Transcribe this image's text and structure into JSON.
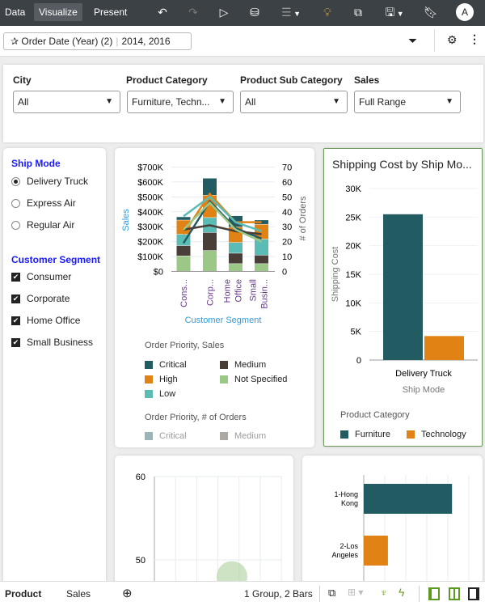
{
  "topbar": {
    "tabs": [
      {
        "label": "Data"
      },
      {
        "label": "Visualize",
        "active": true
      },
      {
        "label": "Present"
      }
    ],
    "icons": [
      "undo-icon",
      "redo-icon",
      "play-icon",
      "data-refresh-icon",
      "comment-icon",
      "lightbulb-icon",
      "export-icon",
      "save-icon",
      "bookmark-icon"
    ],
    "avatar": "A"
  },
  "filterbar": {
    "pin_label": "Order Date (Year) (2)",
    "pin_value": "2014, 2016"
  },
  "filters": [
    {
      "label": "City",
      "value": "All"
    },
    {
      "label": "Product Category",
      "value": "Furniture, Techn..."
    },
    {
      "label": "Product Sub Category",
      "value": "All"
    },
    {
      "label": "Sales",
      "value": "Full Range"
    }
  ],
  "left": {
    "ship_mode_title": "Ship Mode",
    "ship_modes": [
      {
        "label": "Delivery Truck",
        "selected": true
      },
      {
        "label": "Express Air",
        "selected": false
      },
      {
        "label": "Regular Air",
        "selected": false
      }
    ],
    "segment_title": "Customer Segment",
    "segments": [
      {
        "label": "Consumer",
        "checked": true
      },
      {
        "label": "Corporate",
        "checked": true
      },
      {
        "label": "Home Office",
        "checked": true
      },
      {
        "label": "Small Business",
        "checked": true
      }
    ]
  },
  "chart_data": [
    {
      "type": "bar+line",
      "stacked": true,
      "categories": [
        "Cons...",
        "Corp...",
        "Home Office",
        "Small Busin..."
      ],
      "xlabel": "Customer Segment",
      "ylabel": "Sales",
      "y2label": "# of Orders",
      "yticks": [
        "$0",
        "$100K",
        "$200K",
        "$300K",
        "$400K",
        "$500K",
        "$600K",
        "$700K"
      ],
      "ylim": [
        0,
        700000
      ],
      "y2ticks": [
        "0",
        "10",
        "20",
        "30",
        "40",
        "50",
        "60",
        "70"
      ],
      "y2lim": [
        0,
        70
      ],
      "bar_legend_title": "Order Priority, Sales",
      "line_legend_title": "Order Priority, # of Orders",
      "series": [
        {
          "name": "Not Specified",
          "color": "#9cc887",
          "values": [
            103000,
            139000,
            51000,
            51000
          ]
        },
        {
          "name": "Medium",
          "color": "#4a3f38",
          "values": [
            69000,
            121000,
            70000,
            57000
          ]
        },
        {
          "name": "Low",
          "color": "#5bbcb6",
          "values": [
            76000,
            100000,
            72000,
            107000
          ]
        },
        {
          "name": "High",
          "color": "#e08214",
          "values": [
            95000,
            150000,
            104000,
            100000
          ]
        },
        {
          "name": "Critical",
          "color": "#235b63",
          "values": [
            22000,
            114000,
            75000,
            29000
          ]
        }
      ],
      "lines": [
        {
          "name": "Critical",
          "color": "#235b63",
          "values": [
            19,
            47,
            29,
            22
          ]
        },
        {
          "name": "High",
          "color": "#e08214",
          "values": [
            25,
            52,
            33,
            33
          ]
        },
        {
          "name": "Low",
          "color": "#5bbcb6",
          "values": [
            37,
            50,
            33,
            27
          ]
        },
        {
          "name": "Medium",
          "color": "#4a3f38",
          "values": [
            28,
            31,
            27,
            25
          ]
        },
        {
          "name": "Not Specified",
          "color": "#9cc887",
          "values": [
            28,
            46,
            28,
            20
          ]
        }
      ],
      "legend_items": [
        {
          "name": "Critical",
          "color": "#235b63"
        },
        {
          "name": "Medium",
          "color": "#4a3f38"
        },
        {
          "name": "High",
          "color": "#e08214"
        },
        {
          "name": "Not Specified",
          "color": "#9cc887"
        },
        {
          "name": "Low",
          "color": "#5bbcb6"
        }
      ],
      "line_legend_items": [
        {
          "name": "Critical",
          "color": "#235b63"
        },
        {
          "name": "Medium",
          "color": "#4a3f38"
        }
      ]
    },
    {
      "type": "bar",
      "title": "Shipping Cost by Ship Mo...",
      "categories": [
        "Delivery Truck"
      ],
      "xlabel": "Ship Mode",
      "ylabel": "Shipping Cost",
      "yticks": [
        "0",
        "5K",
        "10K",
        "15K",
        "20K",
        "25K",
        "30K"
      ],
      "ylim": [
        0,
        30000
      ],
      "legend_title": "Product Category",
      "series": [
        {
          "name": "Furniture",
          "color": "#235b63",
          "values": [
            25500
          ]
        },
        {
          "name": "Technology",
          "color": "#e08214",
          "values": [
            4200
          ]
        }
      ]
    },
    {
      "type": "scatter",
      "yticks": [
        "60",
        "50"
      ],
      "ylim": [
        46,
        60
      ],
      "points": [
        {
          "y": 48,
          "color": "#9cc887"
        }
      ]
    },
    {
      "type": "bar",
      "orientation": "horizontal",
      "categories": [
        "1-Hong Kong",
        "2-Los Angeles"
      ],
      "values": [
        4.2,
        1.15
      ],
      "colors": [
        "#235b63",
        "#e08214"
      ]
    }
  ],
  "footer": {
    "tabs": [
      "Product",
      "Sales"
    ],
    "status": "1 Group, 2 Bars"
  }
}
